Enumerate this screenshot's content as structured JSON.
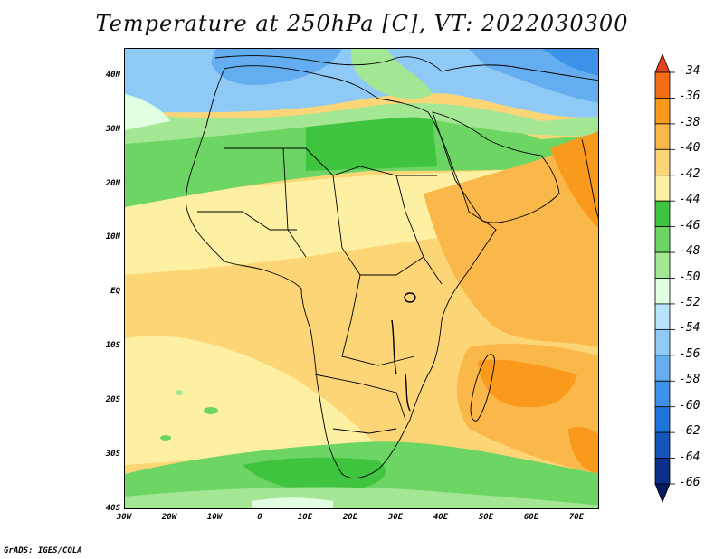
{
  "title": "Temperature at 250hPa [C], VT: 2022030300",
  "credit": "GrADS: IGES/COLA",
  "lat_labels": [
    "40N",
    "30N",
    "20N",
    "10N",
    "EQ",
    "10S",
    "20S",
    "30S",
    "40S"
  ],
  "lon_labels": [
    "30W",
    "20W",
    "10W",
    "0",
    "10E",
    "20E",
    "30E",
    "40E",
    "50E",
    "60E",
    "70E"
  ],
  "colorbar": {
    "labels": [
      "-34",
      "-36",
      "-38",
      "-40",
      "-42",
      "-44",
      "-46",
      "-48",
      "-50",
      "-52",
      "-54",
      "-56",
      "-58",
      "-60",
      "-62",
      "-64",
      "-66"
    ],
    "colors": [
      "#e8431c",
      "#f46d12",
      "#f99a1c",
      "#fbb84a",
      "#fcd577",
      "#fdf0a2",
      "#3fc440",
      "#6dd563",
      "#a3e693",
      "#e1ffe1",
      "#b7e3fc",
      "#8fcaf7",
      "#63adf0",
      "#3c91e8",
      "#1e74db",
      "#1554b8",
      "#0c2f8a",
      "#061a5e"
    ]
  }
}
